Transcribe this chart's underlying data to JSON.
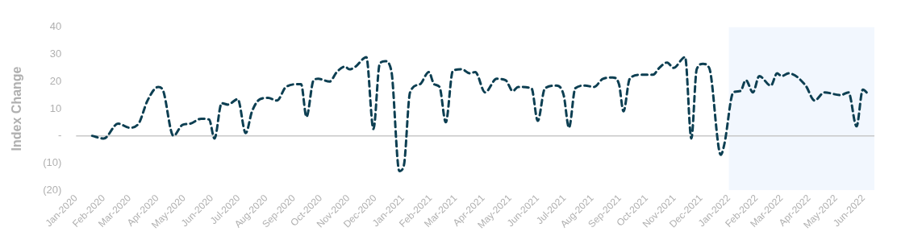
{
  "chart_data": {
    "type": "line",
    "ylabel": "Index Change",
    "x": [
      "2020-01-19",
      "2020-02-01",
      "2020-02-17",
      "2020-03-01",
      "2020-03-11",
      "2020-03-21",
      "2020-04-02",
      "2020-04-07",
      "2020-04-19",
      "2020-04-29",
      "2020-05-08",
      "2020-05-20",
      "2020-05-29",
      "2020-06-04",
      "2020-06-12",
      "2020-06-19",
      "2020-06-30",
      "2020-07-09",
      "2020-07-16",
      "2020-07-25",
      "2020-08-03",
      "2020-08-13",
      "2020-08-23",
      "2020-09-06",
      "2020-09-09",
      "2020-09-15",
      "2020-09-23",
      "2020-09-28",
      "2020-10-11",
      "2020-10-19",
      "2020-10-28",
      "2020-11-02",
      "2020-11-09",
      "2020-11-21",
      "2020-11-29",
      "2020-12-06",
      "2020-12-12",
      "2020-12-19",
      "2020-12-28",
      "2021-01-02",
      "2021-01-09",
      "2021-01-20",
      "2021-01-30",
      "2021-02-05",
      "2021-02-11",
      "2021-02-18",
      "2021-02-26",
      "2021-03-08",
      "2021-03-17",
      "2021-03-23",
      "2021-04-03",
      "2021-04-16",
      "2021-04-26",
      "2021-05-04",
      "2021-05-10",
      "2021-05-25",
      "2021-06-01",
      "2021-06-09",
      "2021-06-22",
      "2021-06-30",
      "2021-07-06",
      "2021-07-13",
      "2021-07-24",
      "2021-08-03",
      "2021-08-13",
      "2021-08-24",
      "2021-08-31",
      "2021-09-05",
      "2021-09-12",
      "2021-09-24",
      "2021-10-08",
      "2021-10-15",
      "2021-10-24",
      "2021-10-31",
      "2021-11-13",
      "2021-11-20",
      "2021-11-26",
      "2021-12-03",
      "2021-12-10",
      "2021-12-23",
      "2021-12-27",
      "2022-01-06",
      "2022-01-14",
      "2022-01-20",
      "2022-01-28",
      "2022-02-04",
      "2022-02-17",
      "2022-02-24",
      "2022-03-01",
      "2022-03-09",
      "2022-03-28",
      "2022-04-07",
      "2022-04-18",
      "2022-05-06",
      "2022-05-15",
      "2022-05-24",
      "2022-05-31",
      "2022-06-07"
    ],
    "series": [
      {
        "color": "#0d3f52",
        "values": [
          0,
          -1,
          4.5,
          3,
          4.5,
          13,
          18,
          17,
          0,
          4,
          4.5,
          6.3,
          6,
          -1,
          12,
          11.5,
          13.5,
          1,
          9,
          13.5,
          14,
          13,
          18,
          19,
          19,
          7,
          20.5,
          21,
          20,
          23.5,
          25.5,
          24.5,
          25.5,
          29,
          2.5,
          26.5,
          27.5,
          24,
          -13,
          -11,
          16,
          19,
          23.5,
          19,
          18,
          5,
          24,
          24.5,
          23,
          23.5,
          16,
          21,
          20.5,
          16.5,
          18,
          17.5,
          5.5,
          17.5,
          18.5,
          15,
          3,
          17.5,
          18.5,
          18,
          21,
          21.5,
          19,
          9,
          21,
          22.5,
          22.5,
          25,
          27,
          25,
          29,
          -1,
          24.5,
          26.5,
          25,
          -7,
          -3,
          16,
          16.5,
          20.5,
          16,
          22,
          18.5,
          23,
          22,
          23,
          18.5,
          13,
          16,
          15,
          16,
          3.5,
          17,
          15
        ]
      }
    ],
    "line_style": "dashed",
    "marker": "none",
    "grid": false,
    "legend": false,
    "xlim": [
      "2020-01-01",
      "2022-06-13"
    ],
    "xticks": [
      {
        "value": "2020-01-01",
        "label": "Jan-2020"
      },
      {
        "value": "2020-02-01",
        "label": "Feb-2020"
      },
      {
        "value": "2020-03-01",
        "label": "Mar-2020"
      },
      {
        "value": "2020-04-01",
        "label": "Apr-2020"
      },
      {
        "value": "2020-05-01",
        "label": "May-2020"
      },
      {
        "value": "2020-06-01",
        "label": "Jun-2020"
      },
      {
        "value": "2020-07-01",
        "label": "Jul-2020"
      },
      {
        "value": "2020-08-01",
        "label": "Aug-2020"
      },
      {
        "value": "2020-09-01",
        "label": "Sep-2020"
      },
      {
        "value": "2020-10-01",
        "label": "Oct-2020"
      },
      {
        "value": "2020-11-01",
        "label": "Nov-2020"
      },
      {
        "value": "2020-12-01",
        "label": "Dec-2020"
      },
      {
        "value": "2021-01-01",
        "label": "Jan-2021"
      },
      {
        "value": "2021-02-01",
        "label": "Feb-2021"
      },
      {
        "value": "2021-03-01",
        "label": "Mar-2021"
      },
      {
        "value": "2021-04-01",
        "label": "Apr-2021"
      },
      {
        "value": "2021-05-01",
        "label": "May-2021"
      },
      {
        "value": "2021-06-01",
        "label": "Jun-2021"
      },
      {
        "value": "2021-07-01",
        "label": "Jul-2021"
      },
      {
        "value": "2021-08-01",
        "label": "Aug-2021"
      },
      {
        "value": "2021-09-01",
        "label": "Sep-2021"
      },
      {
        "value": "2021-10-01",
        "label": "Oct-2021"
      },
      {
        "value": "2021-11-01",
        "label": "Nov-2021"
      },
      {
        "value": "2021-12-01",
        "label": "Dec-2021"
      },
      {
        "value": "2022-01-01",
        "label": "Jan-2022"
      },
      {
        "value": "2022-02-01",
        "label": "Feb-2022"
      },
      {
        "value": "2022-03-01",
        "label": "Mar-2022"
      },
      {
        "value": "2022-04-01",
        "label": "Apr-2022"
      },
      {
        "value": "2022-05-01",
        "label": "May-2022"
      },
      {
        "value": "2022-06-01",
        "label": "Jun-2022"
      }
    ],
    "ylim": [
      -20,
      40
    ],
    "yticks": [
      {
        "value": -20,
        "label": "(20)"
      },
      {
        "value": -10,
        "label": "(10)"
      },
      {
        "value": 0,
        "label": "-"
      },
      10,
      20,
      30,
      40
    ],
    "ref_lines": [
      {
        "axis": "y",
        "value": 0,
        "color": "#c8c8c8"
      }
    ],
    "bands": [
      {
        "axis": "x",
        "from": "2022-01-01",
        "to": "2022-06-13",
        "color": "#f2f7fe"
      }
    ]
  }
}
